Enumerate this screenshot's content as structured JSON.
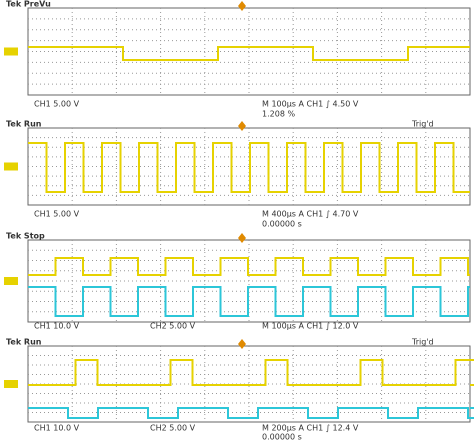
{
  "panels": [
    {
      "status": "Tek PreVu",
      "ch1": "CH1 5.00 V",
      "timebase": "M 100µs A CH1 ∫ 4.50 V",
      "extra": "1.208 %"
    },
    {
      "status": "Tek Run",
      "trig": "Trig'd",
      "ch1": "CH1 5.00 V",
      "timebase": "M 400µs A CH1 ∫ 4.70 V",
      "extra": "0.00000 s"
    },
    {
      "status": "Tek Stop",
      "ch1": "CH1 10.0 V",
      "ch2": "CH2 5.00 V",
      "timebase": "M 100µs A CH1 ∫ 12.0 V"
    },
    {
      "status": "Tek Run",
      "trig": "Trig'd",
      "ch1": "CH1 10.0 V",
      "ch2": "CH2 5.00 V",
      "timebase": "M 200µs A CH1 ∫ 12.4 V",
      "extra": "0.00000 s"
    }
  ]
}
